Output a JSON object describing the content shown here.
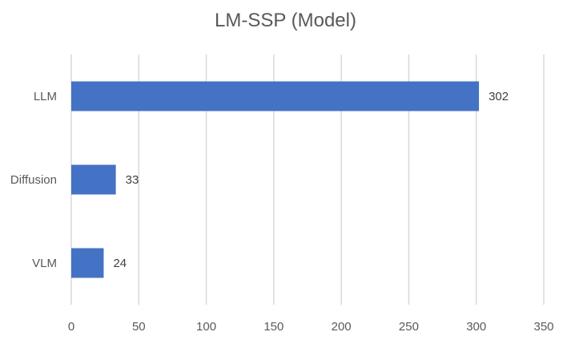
{
  "chart_data": {
    "type": "bar",
    "orientation": "horizontal",
    "title": "LM-SSP (Model)",
    "categories": [
      "LLM",
      "Diffusion",
      "VLM"
    ],
    "series": [
      {
        "values": [
          302,
          33,
          24
        ]
      }
    ],
    "data_labels": [
      "302",
      "33",
      "24"
    ],
    "xlim": [
      0,
      350
    ],
    "x_ticks": [
      "0",
      "50",
      "100",
      "150",
      "200",
      "250",
      "300",
      "350"
    ],
    "grid": "vertical",
    "legend": "none",
    "colors": {
      "bar": "#4472C4",
      "grid": "#D9D9D9",
      "text": "#595959"
    }
  }
}
